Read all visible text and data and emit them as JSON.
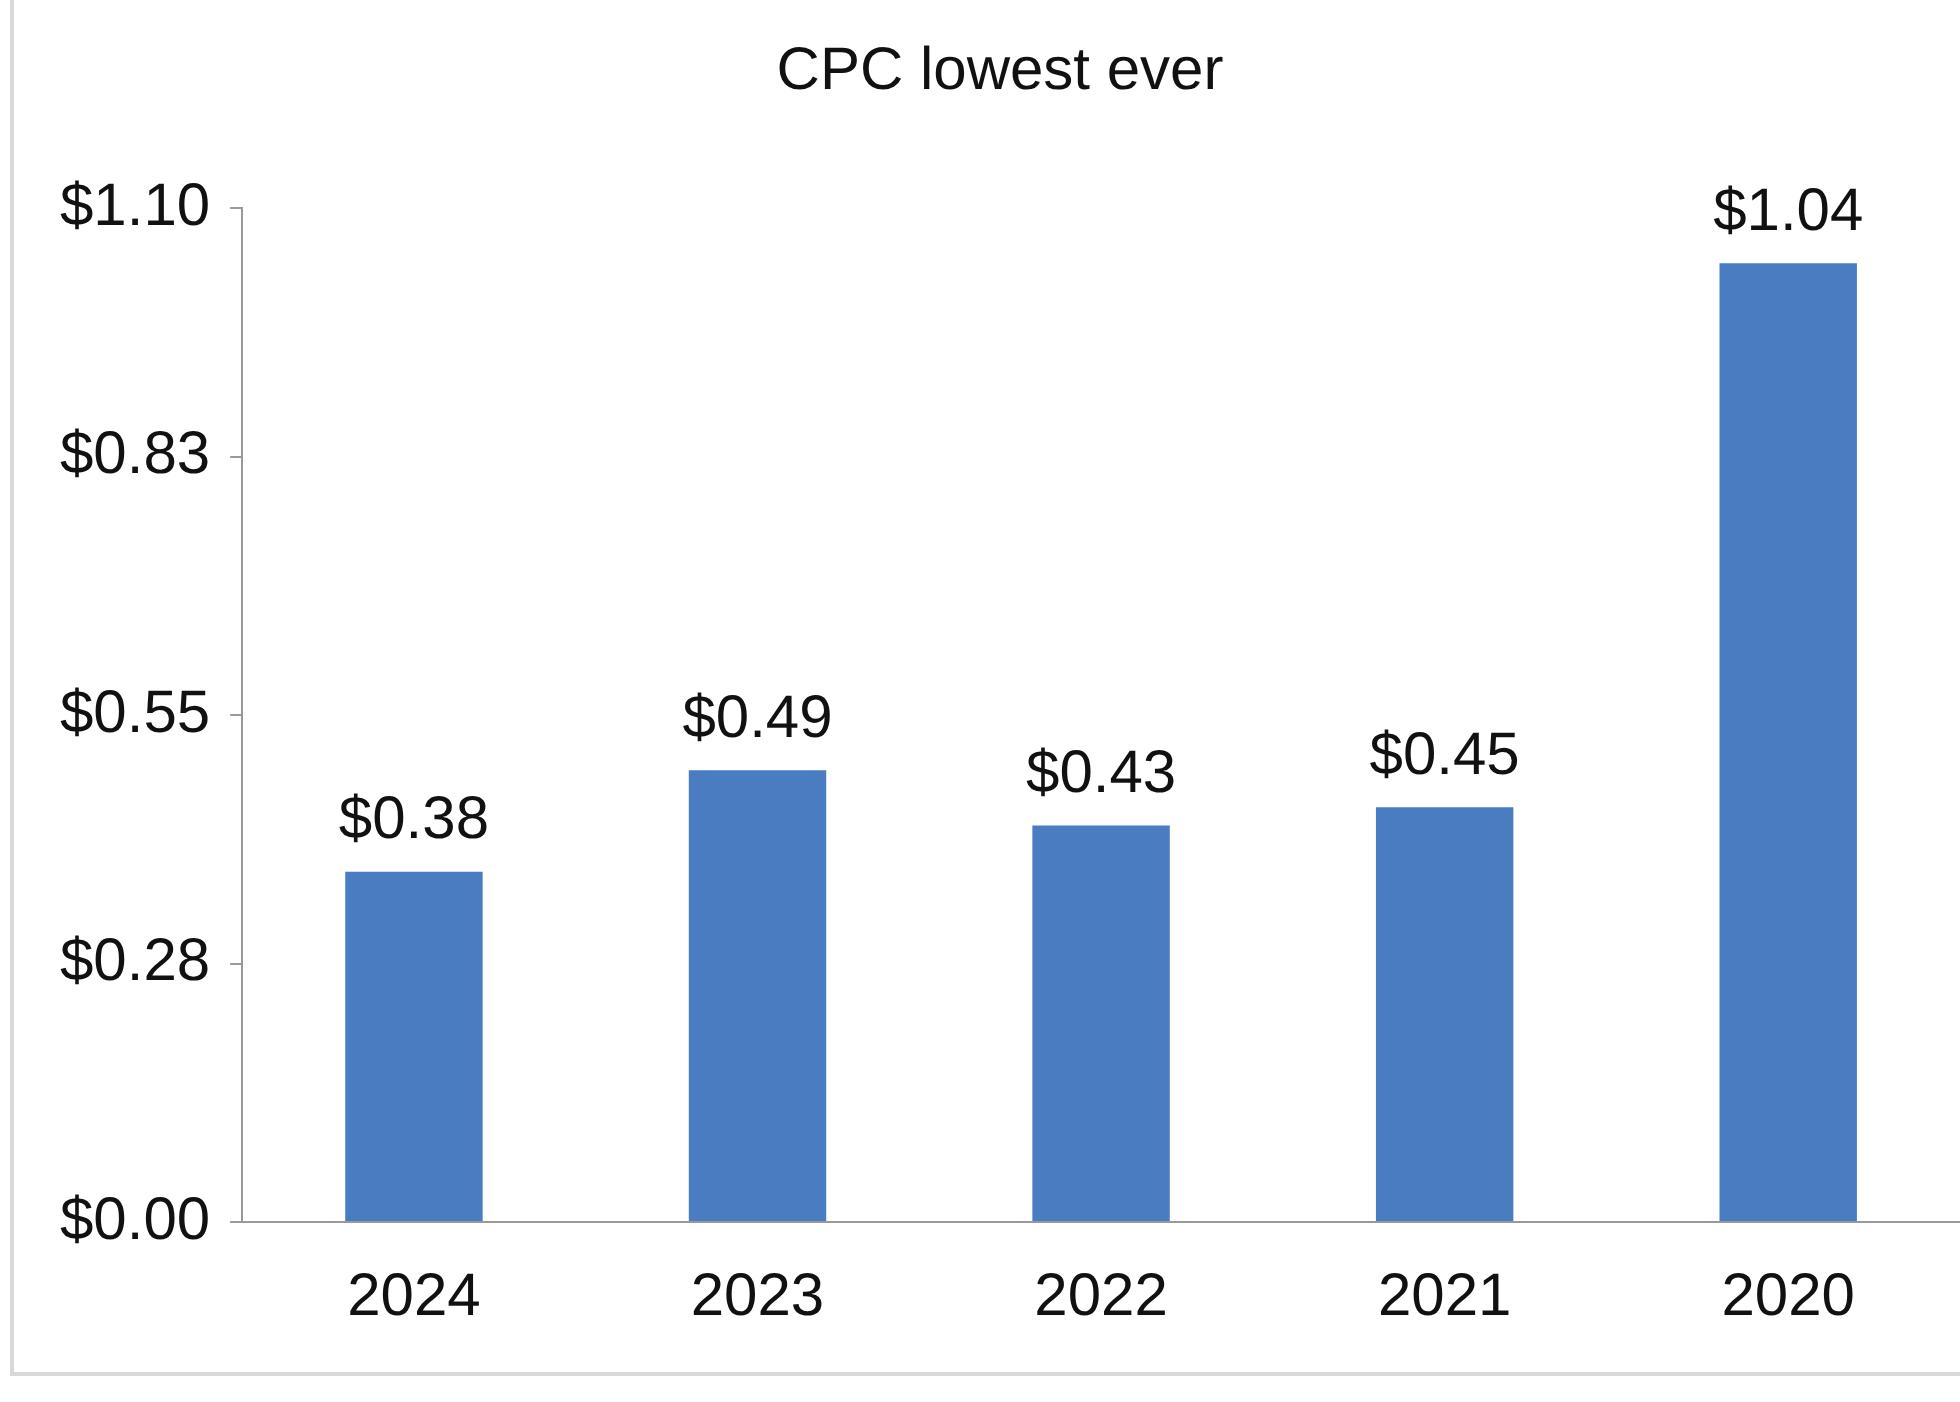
{
  "chart_data": {
    "type": "bar",
    "title": "CPC lowest ever",
    "categories": [
      "2024",
      "2023",
      "2022",
      "2021",
      "2020"
    ],
    "values": [
      0.38,
      0.49,
      0.43,
      0.45,
      1.04
    ],
    "value_labels": [
      "$0.38",
      "$0.49",
      "$0.43",
      "$0.45",
      "$1.04"
    ],
    "color": "#4a7cc1",
    "ylim": [
      0,
      1.1
    ],
    "yticks": [
      {
        "value": 0,
        "label": "$0.00"
      },
      {
        "value": 0.28,
        "label": "$0.28"
      },
      {
        "value": 0.55,
        "label": "$0.55"
      },
      {
        "value": 0.83,
        "label": "$0.83"
      },
      {
        "value": 1.1,
        "label": "$1.10"
      }
    ],
    "grid": false,
    "legend": false
  }
}
